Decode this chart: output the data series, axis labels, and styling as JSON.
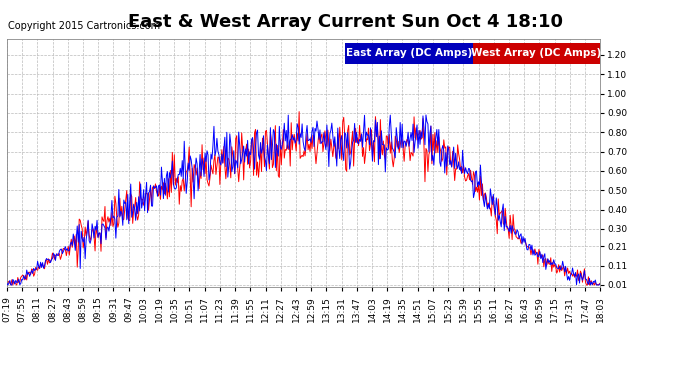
{
  "title": "East & West Array Current Sun Oct 4 18:10",
  "copyright": "Copyright 2015 Cartronics.com",
  "legend_east": "East Array (DC Amps)",
  "legend_west": "West Array (DC Amps)",
  "east_color": "#0000ff",
  "west_color": "#ff0000",
  "east_legend_bg": "#0000bb",
  "west_legend_bg": "#cc0000",
  "legend_text_color": "#ffffff",
  "background_color": "#ffffff",
  "grid_color": "#bbbbbb",
  "yticks": [
    0.01,
    0.11,
    0.21,
    0.3,
    0.4,
    0.5,
    0.6,
    0.7,
    0.8,
    0.9,
    1.0,
    1.1,
    1.2
  ],
  "ylim": [
    0.0,
    1.28
  ],
  "xtick_labels": [
    "07:19",
    "07:55",
    "08:11",
    "08:27",
    "08:43",
    "08:59",
    "09:15",
    "09:31",
    "09:47",
    "10:03",
    "10:19",
    "10:35",
    "10:51",
    "11:07",
    "11:23",
    "11:39",
    "11:55",
    "12:11",
    "12:27",
    "12:43",
    "12:59",
    "13:15",
    "13:31",
    "13:47",
    "14:03",
    "14:19",
    "14:35",
    "14:51",
    "15:07",
    "15:23",
    "15:39",
    "15:55",
    "16:11",
    "16:27",
    "16:43",
    "16:59",
    "17:15",
    "17:31",
    "17:47",
    "18:03"
  ],
  "title_fontsize": 13,
  "copyright_fontsize": 7,
  "tick_fontsize": 6.5,
  "legend_fontsize": 7.5
}
